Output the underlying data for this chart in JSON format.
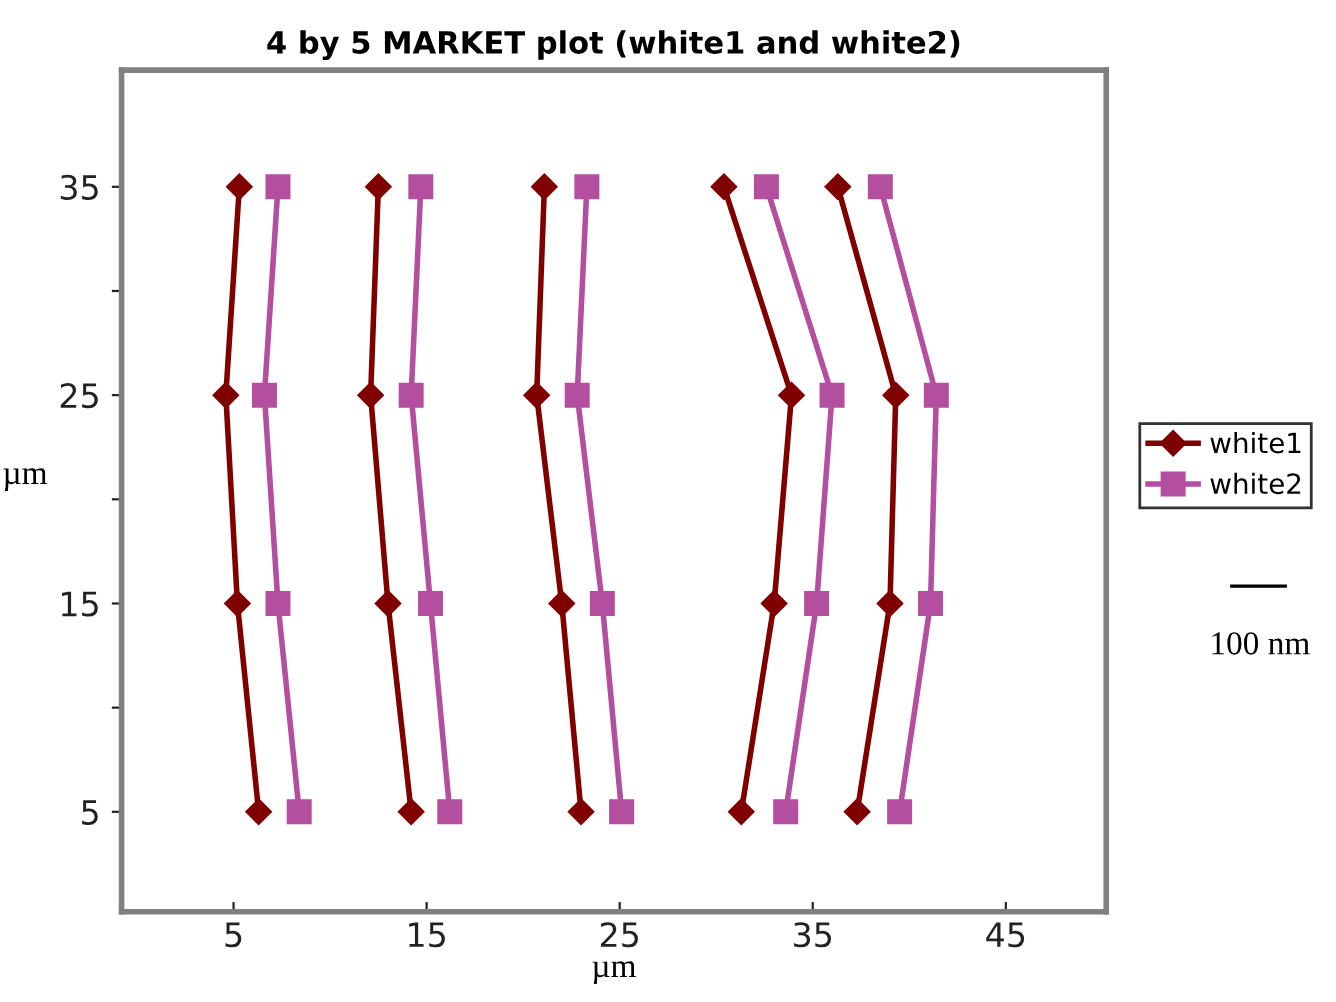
{
  "chart_data": {
    "type": "line",
    "title": "4 by 5 MARKET plot (white1 and white2)",
    "xlabel": "µm",
    "ylabel": "µm",
    "xlim": [
      -0.8,
      50.2
    ],
    "ylim": [
      0.2,
      40.6
    ],
    "xticks": [
      5,
      15,
      25,
      35,
      45
    ],
    "yticks": [
      5,
      {
        "value": 10,
        "label": null
      },
      15,
      {
        "value": 20,
        "label": null
      },
      25,
      {
        "value": 30,
        "label": null
      },
      35
    ],
    "legend": "right",
    "grid": false,
    "annotations": [
      "100 nm"
    ],
    "series": [
      {
        "name": "white1",
        "color": "#800000",
        "marker": "diamond",
        "x": [
          6.3,
          5.2,
          4.6,
          5.3
        ],
        "values": [
          5,
          15,
          25,
          35
        ]
      },
      {
        "name": "white2",
        "color": "#b44e9e",
        "marker": "square",
        "x": [
          8.4,
          7.3,
          6.6,
          7.3
        ],
        "values": [
          5,
          15,
          25,
          35
        ]
      },
      {
        "color": "#800000",
        "marker": "diamond",
        "x": [
          14.2,
          13.0,
          12.1,
          12.5
        ],
        "values": [
          5,
          15,
          25,
          35
        ]
      },
      {
        "color": "#b44e9e",
        "marker": "square",
        "x": [
          16.2,
          15.2,
          14.2,
          14.7
        ],
        "values": [
          5,
          15,
          25,
          35
        ]
      },
      {
        "color": "#800000",
        "marker": "diamond",
        "x": [
          23.0,
          22.0,
          20.7,
          21.1
        ],
        "values": [
          5,
          15,
          25,
          35
        ]
      },
      {
        "color": "#b44e9e",
        "marker": "square",
        "x": [
          25.1,
          24.1,
          22.8,
          23.3
        ],
        "values": [
          5,
          15,
          25,
          35
        ]
      },
      {
        "color": "#800000",
        "marker": "diamond",
        "x": [
          31.3,
          33.0,
          33.9,
          30.4
        ],
        "values": [
          5,
          15,
          25,
          35
        ]
      },
      {
        "color": "#b44e9e",
        "marker": "square",
        "x": [
          33.6,
          35.2,
          36.0,
          32.6
        ],
        "values": [
          5,
          15,
          25,
          35
        ]
      },
      {
        "color": "#800000",
        "marker": "diamond",
        "x": [
          37.3,
          39.0,
          39.3,
          36.3
        ],
        "values": [
          5,
          15,
          25,
          35
        ]
      },
      {
        "color": "#b44e9e",
        "marker": "square",
        "x": [
          39.5,
          41.1,
          41.4,
          38.5
        ],
        "values": [
          5,
          15,
          25,
          35
        ]
      }
    ]
  }
}
